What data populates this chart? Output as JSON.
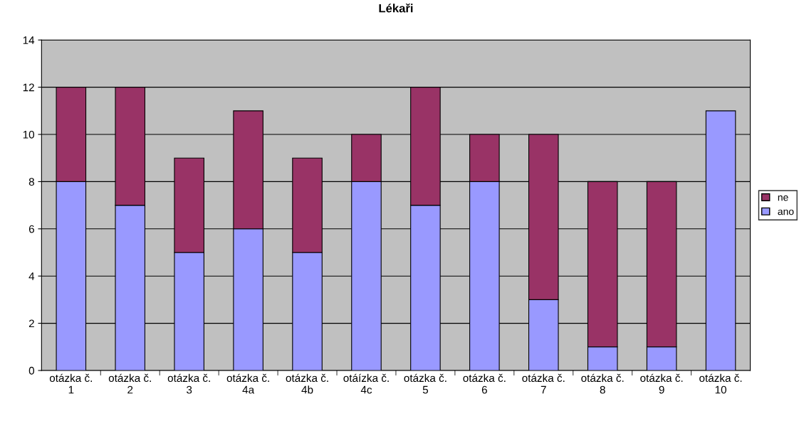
{
  "chart_data": {
    "type": "bar",
    "title": "Lékaři",
    "stacked": true,
    "categories": [
      "otázka č. 1",
      "otázka č. 2",
      "otázka č. 3",
      "otázka č. 4a",
      "otázka č. 4b",
      "otáízka č. 4c",
      "otázka č. 5",
      "otázka č. 6",
      "otázka č. 7",
      "otázka č. 8",
      "otázka č. 9",
      "otázka č. 10"
    ],
    "series": [
      {
        "name": "ano",
        "color": "#9999ff",
        "values": [
          8,
          7,
          5,
          6,
          5,
          8,
          7,
          8,
          3,
          1,
          1,
          11
        ]
      },
      {
        "name": "ne",
        "color": "#993366",
        "values": [
          4,
          5,
          4,
          5,
          4,
          2,
          5,
          2,
          7,
          7,
          7,
          0
        ]
      }
    ],
    "ylim": [
      0,
      14
    ],
    "yticks": [
      0,
      2,
      4,
      6,
      8,
      10,
      12,
      14
    ],
    "grid": "y",
    "legend": "right"
  }
}
